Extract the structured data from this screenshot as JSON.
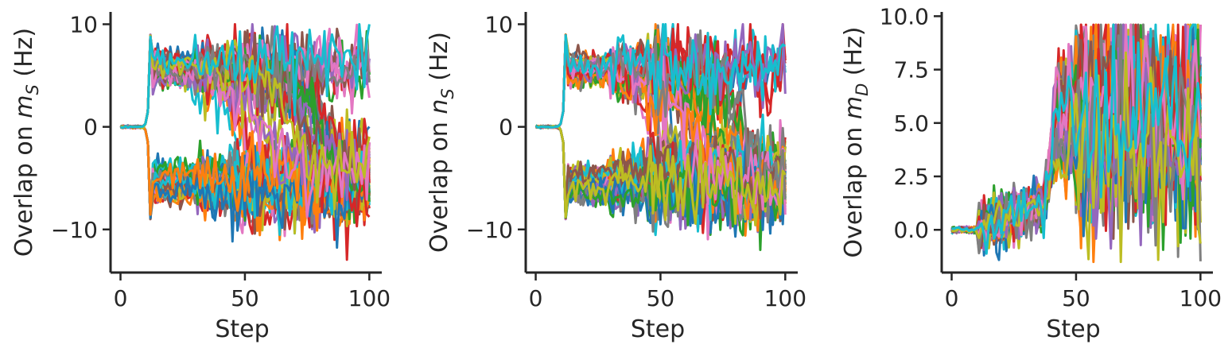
{
  "figure": {
    "palette": [
      "#1f77b4",
      "#ff7f0e",
      "#2ca02c",
      "#d62728",
      "#9467bd",
      "#8c564b",
      "#e377c2",
      "#7f7f7f",
      "#bcbd22",
      "#17becf"
    ],
    "axis_color": "#262626"
  },
  "chart_data": [
    {
      "type": "line",
      "title": "",
      "xlabel": "Step",
      "ylabel": {
        "prefix": "Overlap on ",
        "var": "m",
        "sub": "S",
        "suffix": " (Hz)"
      },
      "xlim": [
        -4,
        105
      ],
      "ylim": [
        -14.2,
        11.2
      ],
      "xticks": [
        0,
        50,
        100
      ],
      "yticks": [
        -10,
        0,
        10
      ],
      "ytick_labels": [
        "−10",
        "0",
        "10"
      ],
      "grid": false,
      "legend": "none",
      "n_series": 60,
      "num_steps": 101,
      "description": "Traces start near 0, split at step ~12 into an upper branch (~6 Hz) and a lower branch (~-6 Hz); from step ~35 part of the upper branch decays toward the lower branch; late steps fluctuate between ~-13 and ~10 Hz.",
      "pattern": {
        "kind": "bifurcate",
        "split_step": 12,
        "spike": 9,
        "upper_level": 5.5,
        "lower_level": -5.5,
        "transition_start": 35,
        "min": -13,
        "max": 10
      }
    },
    {
      "type": "line",
      "title": "",
      "xlabel": "Step",
      "ylabel": {
        "prefix": "Overlap on ",
        "var": "n",
        "sub": "S",
        "suffix": " (Hz)"
      },
      "xlim": [
        -4,
        105
      ],
      "ylim": [
        -14.2,
        11.2
      ],
      "xticks": [
        0,
        50,
        100
      ],
      "yticks": [
        -10,
        0,
        10
      ],
      "ytick_labels": [
        "−10",
        "0",
        "10"
      ],
      "grid": false,
      "legend": "none",
      "n_series": 60,
      "num_steps": 101,
      "description": "Same dynamics as the m_S panel.",
      "pattern": {
        "kind": "bifurcate",
        "split_step": 12,
        "spike": 9,
        "upper_level": 5.5,
        "lower_level": -5.5,
        "transition_start": 35,
        "min": -13,
        "max": 10
      }
    },
    {
      "type": "line",
      "title": "",
      "xlabel": "Step",
      "ylabel": {
        "prefix": "Overlap on ",
        "var": "m",
        "sub": "D",
        "suffix": " (Hz)"
      },
      "xlim": [
        -4,
        105
      ],
      "ylim": [
        -2.0,
        10.2
      ],
      "xticks": [
        0,
        50,
        100
      ],
      "yticks": [
        0.0,
        2.5,
        5.0,
        7.5,
        10.0
      ],
      "ytick_labels": [
        "0.0",
        "2.5",
        "5.0",
        "7.5",
        "10.0"
      ],
      "grid": false,
      "legend": "none",
      "n_series": 60,
      "num_steps": 101,
      "description": "Traces near 0 until step ~10, noisy rise to ~1 Hz by step ~35, jump to ~5 Hz at step ~40, then broad fluctuation between ~-1.5 and ~9.5 Hz.",
      "pattern": {
        "kind": "rise",
        "flat_until": 10,
        "jump_step": 37,
        "plateau": 5,
        "min": -1.5,
        "max": 9.6
      }
    }
  ]
}
